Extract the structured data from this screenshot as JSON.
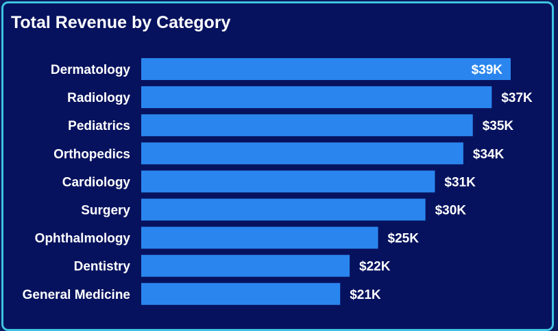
{
  "colors": {
    "background": "#07125e",
    "border": "#3ec3e0",
    "bar": "#2a86ee",
    "text": "#ffffff"
  },
  "chart_data": {
    "type": "bar",
    "orientation": "horizontal",
    "title": "Total Revenue by Category",
    "categories": [
      "Dermatology",
      "Radiology",
      "Pediatrics",
      "Orthopedics",
      "Cardiology",
      "Surgery",
      "Ophthalmology",
      "Dentistry",
      "General Medicine"
    ],
    "values": [
      39,
      37,
      35,
      34,
      31,
      30,
      25,
      22,
      21
    ],
    "data_labels": [
      "$39K",
      "$37K",
      "$35K",
      "$34K",
      "$31K",
      "$30K",
      "$25K",
      "$22K",
      "$21K"
    ],
    "unit": "K USD",
    "xlim": [
      0,
      39
    ],
    "grid": false,
    "legend": "none"
  }
}
